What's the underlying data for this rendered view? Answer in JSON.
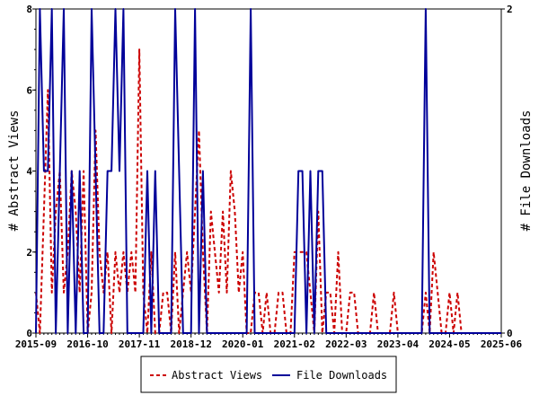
{
  "chart_data": {
    "type": "line",
    "xlabel": "",
    "x_tick_labels": [
      "2015-09",
      "2016-10",
      "2017-11",
      "2018-12",
      "2020-01",
      "2021-02",
      "2022-03",
      "2023-04",
      "2024-05",
      "2025-06"
    ],
    "x_range": [
      "2015-09",
      "2025-06"
    ],
    "y_left": {
      "label": "# Abstract Views",
      "range": [
        0,
        8
      ],
      "ticks": [
        "0",
        "2",
        "4",
        "6",
        "8"
      ]
    },
    "y_right": {
      "label": "# File Downloads",
      "range": [
        0,
        2
      ],
      "ticks": [
        "0",
        "2"
      ]
    },
    "legend": {
      "placement": "bottom",
      "entries": [
        "Abstract Views",
        "File Downloads"
      ]
    },
    "series": [
      {
        "name": "Abstract Views",
        "axis": "left",
        "color": "#cc0000",
        "dash": true,
        "points": [
          [
            "2015-09",
            1
          ],
          [
            "2015-10",
            0
          ],
          [
            "2015-11",
            3
          ],
          [
            "2015-12",
            6
          ],
          [
            "2016-01",
            1
          ],
          [
            "2016-02",
            3
          ],
          [
            "2016-03",
            4
          ],
          [
            "2016-04",
            1
          ],
          [
            "2016-05",
            2
          ],
          [
            "2016-06",
            4
          ],
          [
            "2016-07",
            3
          ],
          [
            "2016-08",
            1
          ],
          [
            "2016-09",
            4
          ],
          [
            "2016-10",
            0
          ],
          [
            "2016-11",
            1
          ],
          [
            "2016-12",
            5
          ],
          [
            "2017-01",
            2
          ],
          [
            "2017-02",
            1
          ],
          [
            "2017-03",
            2
          ],
          [
            "2017-04",
            0
          ],
          [
            "2017-05",
            2
          ],
          [
            "2017-06",
            1
          ],
          [
            "2017-07",
            2
          ],
          [
            "2017-08",
            1
          ],
          [
            "2017-09",
            2
          ],
          [
            "2017-10",
            1
          ],
          [
            "2017-11",
            7
          ],
          [
            "2017-12",
            1
          ],
          [
            "2018-01",
            0
          ],
          [
            "2018-02",
            2
          ],
          [
            "2018-03",
            0
          ],
          [
            "2018-04",
            0
          ],
          [
            "2018-05",
            1
          ],
          [
            "2018-06",
            1
          ],
          [
            "2018-07",
            0
          ],
          [
            "2018-08",
            2
          ],
          [
            "2018-09",
            0
          ],
          [
            "2018-10",
            1
          ],
          [
            "2018-11",
            2
          ],
          [
            "2018-12",
            1
          ],
          [
            "2019-01",
            3
          ],
          [
            "2019-02",
            5
          ],
          [
            "2019-03",
            2
          ],
          [
            "2019-04",
            0
          ],
          [
            "2019-05",
            3
          ],
          [
            "2019-06",
            2
          ],
          [
            "2019-07",
            1
          ],
          [
            "2019-08",
            3
          ],
          [
            "2019-09",
            1
          ],
          [
            "2019-10",
            4
          ],
          [
            "2019-11",
            3
          ],
          [
            "2019-12",
            1
          ],
          [
            "2020-01",
            2
          ],
          [
            "2020-02",
            0
          ],
          [
            "2020-03",
            0
          ],
          [
            "2020-04",
            1
          ],
          [
            "2020-05",
            1
          ],
          [
            "2020-06",
            0
          ],
          [
            "2020-07",
            1
          ],
          [
            "2020-08",
            0
          ],
          [
            "2020-09",
            0
          ],
          [
            "2020-10",
            1
          ],
          [
            "2020-11",
            1
          ],
          [
            "2020-12",
            0
          ],
          [
            "2021-01",
            0
          ],
          [
            "2021-02",
            2
          ],
          [
            "2021-03",
            2
          ],
          [
            "2021-04",
            2
          ],
          [
            "2021-05",
            2
          ],
          [
            "2021-06",
            1
          ],
          [
            "2021-07",
            0
          ],
          [
            "2021-08",
            3
          ],
          [
            "2021-09",
            0
          ],
          [
            "2021-10",
            1
          ],
          [
            "2021-11",
            1
          ],
          [
            "2021-12",
            0
          ],
          [
            "2022-01",
            2
          ],
          [
            "2022-02",
            0
          ],
          [
            "2022-03",
            0
          ],
          [
            "2022-04",
            1
          ],
          [
            "2022-05",
            1
          ],
          [
            "2022-06",
            0
          ],
          [
            "2022-07",
            0
          ],
          [
            "2022-08",
            0
          ],
          [
            "2022-09",
            0
          ],
          [
            "2022-10",
            1
          ],
          [
            "2022-11",
            0
          ],
          [
            "2022-12",
            0
          ],
          [
            "2023-01",
            0
          ],
          [
            "2023-02",
            0
          ],
          [
            "2023-03",
            1
          ],
          [
            "2023-04",
            0
          ],
          [
            "2023-05",
            0
          ],
          [
            "2023-06",
            0
          ],
          [
            "2023-07",
            0
          ],
          [
            "2023-08",
            0
          ],
          [
            "2023-09",
            0
          ],
          [
            "2023-10",
            0
          ],
          [
            "2023-11",
            1
          ],
          [
            "2023-12",
            0
          ],
          [
            "2024-01",
            2
          ],
          [
            "2024-02",
            1
          ],
          [
            "2024-03",
            0
          ],
          [
            "2024-04",
            0
          ],
          [
            "2024-05",
            1
          ],
          [
            "2024-06",
            0
          ],
          [
            "2024-07",
            1
          ],
          [
            "2024-08",
            0
          ],
          [
            "2024-09",
            0
          ],
          [
            "2024-10",
            0
          ],
          [
            "2024-11",
            0
          ],
          [
            "2024-12",
            0
          ],
          [
            "2025-01",
            0
          ],
          [
            "2025-02",
            0
          ],
          [
            "2025-03",
            0
          ],
          [
            "2025-04",
            0
          ],
          [
            "2025-05",
            0
          ],
          [
            "2025-06",
            0
          ]
        ]
      },
      {
        "name": "File Downloads",
        "axis": "right",
        "color": "#000099",
        "dash": false,
        "points": [
          [
            "2015-09",
            0
          ],
          [
            "2015-10",
            2
          ],
          [
            "2015-11",
            1
          ],
          [
            "2015-12",
            1
          ],
          [
            "2016-01",
            2
          ],
          [
            "2016-02",
            0
          ],
          [
            "2016-03",
            1
          ],
          [
            "2016-04",
            2
          ],
          [
            "2016-05",
            0
          ],
          [
            "2016-06",
            1
          ],
          [
            "2016-07",
            0
          ],
          [
            "2016-08",
            1
          ],
          [
            "2016-09",
            0
          ],
          [
            "2016-10",
            0
          ],
          [
            "2016-11",
            2
          ],
          [
            "2016-12",
            1
          ],
          [
            "2017-01",
            0
          ],
          [
            "2017-02",
            0
          ],
          [
            "2017-03",
            1
          ],
          [
            "2017-04",
            1
          ],
          [
            "2017-05",
            2
          ],
          [
            "2017-06",
            1
          ],
          [
            "2017-07",
            2
          ],
          [
            "2017-08",
            0
          ],
          [
            "2017-09",
            0
          ],
          [
            "2017-10",
            0
          ],
          [
            "2017-11",
            0
          ],
          [
            "2017-12",
            0
          ],
          [
            "2018-01",
            1
          ],
          [
            "2018-02",
            0
          ],
          [
            "2018-03",
            1
          ],
          [
            "2018-04",
            0
          ],
          [
            "2018-05",
            0
          ],
          [
            "2018-06",
            0
          ],
          [
            "2018-07",
            0
          ],
          [
            "2018-08",
            2
          ],
          [
            "2018-09",
            1
          ],
          [
            "2018-10",
            0
          ],
          [
            "2018-11",
            0
          ],
          [
            "2018-12",
            0
          ],
          [
            "2019-01",
            2
          ],
          [
            "2019-02",
            0
          ],
          [
            "2019-03",
            1
          ],
          [
            "2019-04",
            0
          ],
          [
            "2019-05",
            0
          ],
          [
            "2019-06",
            0
          ],
          [
            "2019-07",
            0
          ],
          [
            "2019-08",
            0
          ],
          [
            "2019-09",
            0
          ],
          [
            "2019-10",
            0
          ],
          [
            "2019-11",
            0
          ],
          [
            "2019-12",
            0
          ],
          [
            "2020-01",
            0
          ],
          [
            "2020-02",
            0
          ],
          [
            "2020-03",
            2
          ],
          [
            "2020-04",
            0
          ],
          [
            "2020-05",
            0
          ],
          [
            "2020-06",
            0
          ],
          [
            "2020-07",
            0
          ],
          [
            "2020-08",
            0
          ],
          [
            "2020-09",
            0
          ],
          [
            "2020-10",
            0
          ],
          [
            "2020-11",
            0
          ],
          [
            "2020-12",
            0
          ],
          [
            "2021-01",
            0
          ],
          [
            "2021-02",
            0
          ],
          [
            "2021-03",
            1
          ],
          [
            "2021-04",
            1
          ],
          [
            "2021-05",
            0
          ],
          [
            "2021-06",
            1
          ],
          [
            "2021-07",
            0
          ],
          [
            "2021-08",
            1
          ],
          [
            "2021-09",
            1
          ],
          [
            "2021-10",
            0
          ],
          [
            "2021-11",
            0
          ],
          [
            "2021-12",
            0
          ],
          [
            "2022-01",
            0
          ],
          [
            "2022-02",
            0
          ],
          [
            "2022-03",
            0
          ],
          [
            "2022-04",
            0
          ],
          [
            "2022-05",
            0
          ],
          [
            "2022-06",
            0
          ],
          [
            "2022-07",
            0
          ],
          [
            "2022-08",
            0
          ],
          [
            "2022-09",
            0
          ],
          [
            "2022-10",
            0
          ],
          [
            "2022-11",
            0
          ],
          [
            "2022-12",
            0
          ],
          [
            "2023-01",
            0
          ],
          [
            "2023-02",
            0
          ],
          [
            "2023-03",
            0
          ],
          [
            "2023-04",
            0
          ],
          [
            "2023-05",
            0
          ],
          [
            "2023-06",
            0
          ],
          [
            "2023-07",
            0
          ],
          [
            "2023-08",
            0
          ],
          [
            "2023-09",
            0
          ],
          [
            "2023-10",
            0
          ],
          [
            "2023-11",
            2
          ],
          [
            "2023-12",
            0
          ],
          [
            "2024-01",
            0
          ],
          [
            "2024-02",
            0
          ],
          [
            "2024-03",
            0
          ],
          [
            "2024-04",
            0
          ],
          [
            "2024-05",
            0
          ],
          [
            "2024-06",
            0
          ],
          [
            "2024-07",
            0
          ],
          [
            "2024-08",
            0
          ],
          [
            "2024-09",
            0
          ],
          [
            "2024-10",
            0
          ],
          [
            "2024-11",
            0
          ],
          [
            "2024-12",
            0
          ],
          [
            "2025-01",
            0
          ],
          [
            "2025-02",
            0
          ],
          [
            "2025-03",
            0
          ],
          [
            "2025-04",
            0
          ],
          [
            "2025-05",
            0
          ],
          [
            "2025-06",
            0
          ]
        ]
      }
    ]
  }
}
